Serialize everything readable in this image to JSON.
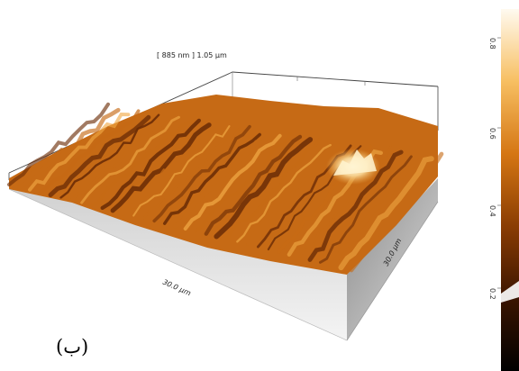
{
  "figure": {
    "header_label": "[ 885 nm ] 1.05 µm",
    "x_axis_label": "30.0 µm",
    "y_axis_label": "30.0 µm",
    "panel_label": "(ب)"
  },
  "colorbar": {
    "ticks": [
      "0.8",
      "0.6",
      "0.4",
      "0.2"
    ],
    "colors": [
      "#2a0f00",
      "#7a3200",
      "#c8630d",
      "#ef9a2e",
      "#f9cf86",
      "#ffffff"
    ]
  },
  "surface_colors": {
    "dark": "#6b2c06",
    "mid": "#c66a15",
    "light": "#f0a844",
    "highlight": "#fff3cf"
  }
}
